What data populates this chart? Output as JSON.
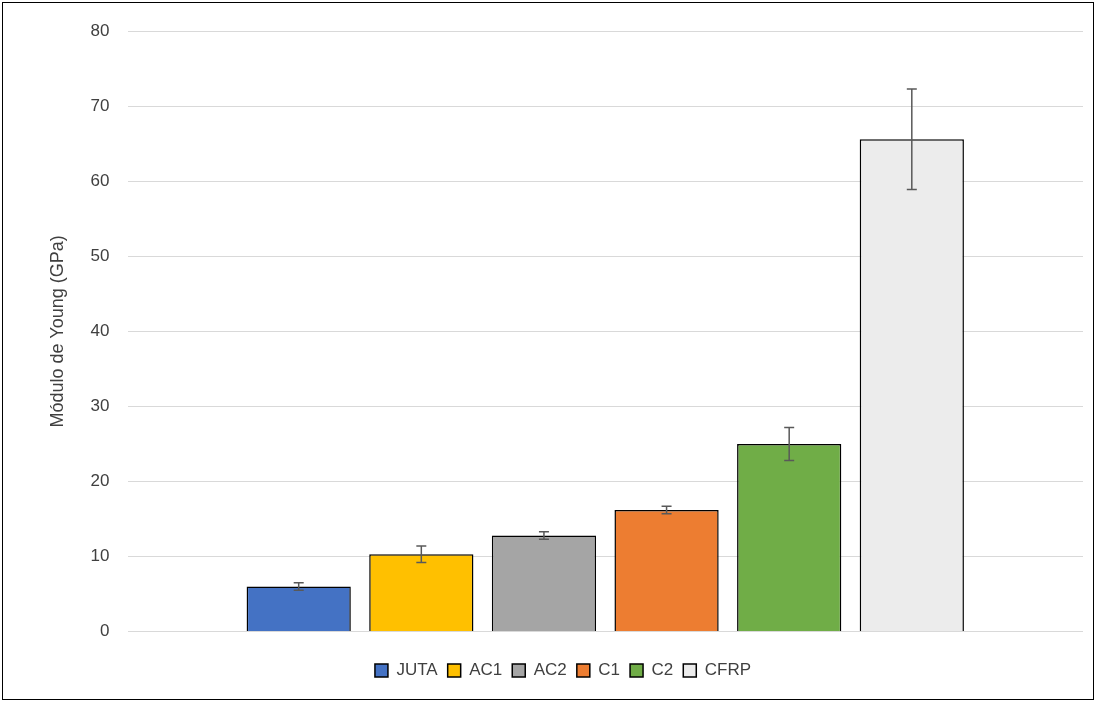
{
  "chart_data": {
    "type": "bar",
    "ylabel": "Módulo de Young (GPa)",
    "categories": [
      null
    ],
    "series": [
      {
        "name": "JUTA",
        "color": "#4472c4",
        "values": [
          6.0
        ],
        "errors": [
          0.5
        ]
      },
      {
        "name": "AC1",
        "color": "#ffc000",
        "values": [
          10.3
        ],
        "errors": [
          1.1
        ]
      },
      {
        "name": "AC2",
        "color": "#a5a5a5",
        "values": [
          12.8
        ],
        "errors": [
          0.5
        ]
      },
      {
        "name": "C1",
        "color": "#ed7d31",
        "values": [
          16.2
        ],
        "errors": [
          0.5
        ]
      },
      {
        "name": "C2",
        "color": "#70ad47",
        "values": [
          25.0
        ],
        "errors": [
          2.2
        ]
      },
      {
        "name": "CFRP",
        "color": "#ececec",
        "values": [
          65.6
        ],
        "errors": [
          6.7
        ]
      }
    ],
    "ylim": [
      0,
      80
    ],
    "yticks": [
      0,
      10,
      20,
      30,
      40,
      50,
      60,
      70,
      80
    ],
    "grid": "y",
    "legend": "bottom"
  }
}
